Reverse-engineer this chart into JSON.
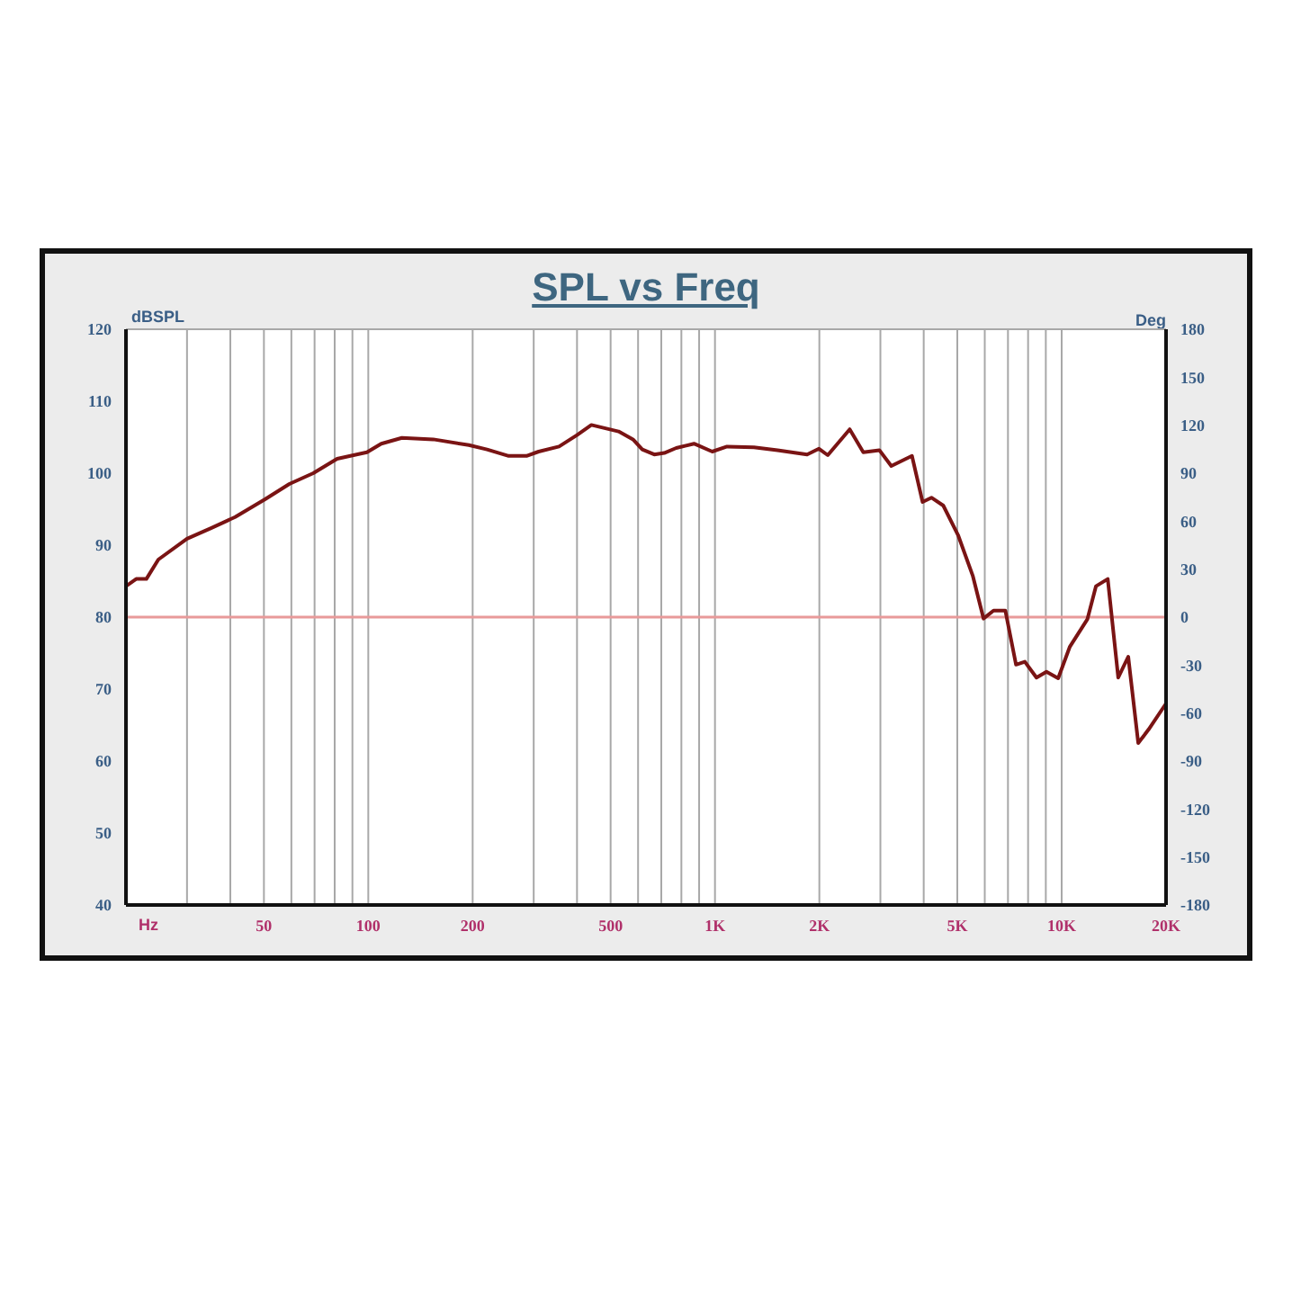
{
  "chart_data": {
    "type": "line",
    "title": "SPL vs Freq",
    "xlabel": "Hz",
    "ylabel": "dBSPL",
    "y2label": "Deg",
    "log": "x",
    "grid": true,
    "marker": "none",
    "line_style": "solid",
    "legend": false,
    "xlim": [
      20,
      20000
    ],
    "xticks": [
      {
        "value": 30,
        "label": null
      },
      {
        "value": 40,
        "label": null
      },
      50,
      {
        "value": 60,
        "label": null
      },
      {
        "value": 70,
        "label": null
      },
      {
        "value": 80,
        "label": null
      },
      {
        "value": 90,
        "label": null
      },
      100,
      200,
      {
        "value": 300,
        "label": null
      },
      {
        "value": 400,
        "label": null
      },
      500,
      {
        "value": 600,
        "label": null
      },
      {
        "value": 700,
        "label": null
      },
      {
        "value": 800,
        "label": null
      },
      {
        "value": 900,
        "label": null
      },
      {
        "value": 1000,
        "label": "1K"
      },
      {
        "value": 2000,
        "label": "2K"
      },
      {
        "value": 3000,
        "label": null
      },
      {
        "value": 4000,
        "label": null
      },
      {
        "value": 5000,
        "label": "5K"
      },
      {
        "value": 6000,
        "label": null
      },
      {
        "value": 7000,
        "label": null
      },
      {
        "value": 8000,
        "label": null
      },
      {
        "value": 9000,
        "label": null
      },
      {
        "value": 10000,
        "label": "10K"
      },
      {
        "value": 20000,
        "label": "20K"
      }
    ],
    "ylim": [
      40,
      120
    ],
    "yticks": [
      40,
      50,
      60,
      70,
      80,
      90,
      100,
      110,
      120
    ],
    "y2lim": [
      -180,
      180
    ],
    "y2ticks": [
      -180,
      -150,
      -120,
      -90,
      -60,
      -30,
      0,
      30,
      60,
      90,
      120,
      150,
      180
    ],
    "ref_lines": [
      {
        "axis": "y",
        "value": 80,
        "color": "#e89a9a"
      }
    ],
    "series": [
      {
        "color": "#7a1414",
        "x": [
          20,
          21.4,
          22.9,
          24.8,
          30,
          35.3,
          41.3,
          50.5,
          59.2,
          69.4,
          81.3,
          99.1,
          109,
          125,
          154,
          195,
          220,
          254,
          286,
          310,
          355,
          400,
          440,
          527,
          580,
          617,
          668,
          714,
          773,
          870,
          982,
          1083,
          1295,
          1515,
          1844,
          1995,
          2115,
          2447,
          2678,
          2980,
          3225,
          3700,
          3970,
          4210,
          4555,
          5025,
          5545,
          5950,
          6360,
          6880,
          7385,
          7830,
          8460,
          9040,
          9770,
          10560,
          11860,
          12560,
          13580,
          14560,
          15560,
          16630,
          17820,
          20000
        ],
        "values": [
          84.3,
          85.3,
          85.3,
          88.0,
          90.9,
          92.4,
          93.9,
          96.4,
          98.5,
          100.0,
          102.0,
          102.9,
          104.1,
          104.9,
          104.7,
          103.9,
          103.3,
          102.4,
          102.4,
          103.0,
          103.7,
          105.3,
          106.7,
          105.8,
          104.7,
          103.3,
          102.6,
          102.8,
          103.5,
          104.1,
          103.0,
          103.7,
          103.6,
          103.2,
          102.6,
          103.4,
          102.5,
          106.1,
          102.9,
          103.2,
          101.0,
          102.4,
          96.0,
          96.6,
          95.5,
          91.4,
          85.7,
          79.8,
          80.9,
          80.9,
          73.4,
          73.8,
          71.6,
          72.4,
          71.5,
          75.9,
          79.7,
          84.3,
          85.3,
          71.6,
          74.5,
          62.5,
          64.4,
          68.0
        ]
      }
    ]
  }
}
